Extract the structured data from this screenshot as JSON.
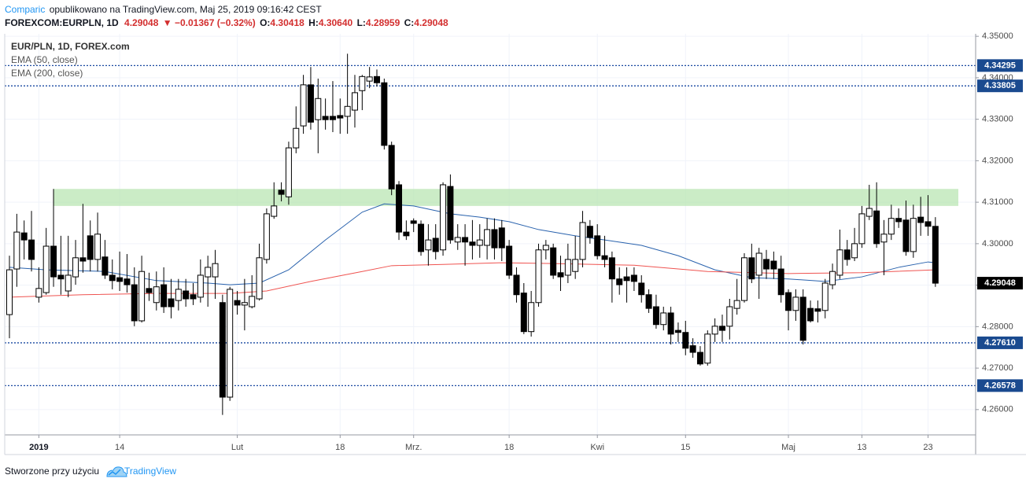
{
  "header": {
    "author": "Comparic",
    "published": "opublikowano na TradingView.com, Maj 25, 2019 09:16:42 CEST",
    "symbol": "FOREXCOM:EURPLN, 1D",
    "last": "4.29048",
    "change": "▼ −0.01367 (−0.32%)",
    "quote": [
      {
        "key": "O:",
        "value": "4.30418"
      },
      {
        "key": "H:",
        "value": "4.30640"
      },
      {
        "key": "L:",
        "value": "4.28959"
      },
      {
        "key": "C:",
        "value": "4.29048"
      }
    ]
  },
  "chart_data": {
    "type": "candlestick",
    "title": "EUR/PLN, 1D, FOREX.com",
    "categories": [
      null,
      null,
      null,
      null,
      "2019",
      null,
      null,
      null,
      null,
      null,
      null,
      null,
      null,
      null,
      null,
      "14",
      null,
      null,
      null,
      null,
      null,
      null,
      null,
      null,
      null,
      null,
      null,
      null,
      null,
      null,
      null,
      "Lut",
      null,
      null,
      null,
      null,
      null,
      null,
      null,
      null,
      null,
      null,
      null,
      null,
      null,
      "18",
      null,
      null,
      null,
      null,
      null,
      null,
      null,
      null,
      null,
      "Mrz.",
      null,
      null,
      null,
      null,
      null,
      null,
      null,
      null,
      null,
      null,
      null,
      null,
      "18",
      null,
      null,
      null,
      null,
      null,
      null,
      null,
      null,
      null,
      null,
      null,
      "Kwi",
      null,
      null,
      null,
      null,
      null,
      null,
      null,
      null,
      null,
      null,
      null,
      "15",
      null,
      null,
      null,
      null,
      null,
      null,
      null,
      null,
      null,
      null,
      null,
      null,
      null,
      "Maj",
      null,
      null,
      null,
      null,
      null,
      null,
      null,
      null,
      null,
      "13",
      null,
      null,
      null,
      null,
      null,
      null,
      null,
      null,
      "23",
      null
    ],
    "open": [
      4.2829,
      4.2939,
      4.3026,
      4.3009,
      4.2871,
      4.2882,
      4.2994,
      4.2924,
      4.2886,
      4.292,
      4.2966,
      4.3019,
      4.2962,
      4.2968,
      4.2924,
      4.2918,
      4.2915,
      4.2901,
      4.2814,
      4.2892,
      4.2858,
      4.2901,
      4.2867,
      4.2863,
      4.2886,
      4.2877,
      4.2871,
      4.292,
      4.292,
      4.2858,
      4.263,
      4.2863,
      4.2852,
      4.2848,
      4.2867,
      4.2962,
      4.3066,
      4.3129,
      4.3113,
      4.3231,
      4.3284,
      4.3383,
      4.3299,
      4.3307,
      4.3307,
      4.3309,
      4.3307,
      4.3322,
      4.3369,
      4.3392,
      4.3403,
      4.3388,
      4.3237,
      4.3142,
      4.3028,
      4.3055,
      4.3047,
      4.2985,
      4.3013,
      4.2985,
      4.3138,
      4.3004,
      4.3015,
      4.3004,
      4.2996,
      4.2996,
      4.3034,
      4.3038,
      4.2994,
      4.2924,
      4.2881,
      4.2788,
      4.2858,
      4.2985,
      4.299,
      4.293,
      4.2924,
      4.2933,
      4.2962,
      4.3042,
      4.3019,
      4.2971,
      4.2966,
      4.2915,
      4.292,
      4.2924,
      4.2905,
      4.2877,
      4.2848,
      4.2805,
      4.2833,
      4.2791,
      4.2786,
      4.2754,
      4.2738,
      4.2712,
      4.2782,
      4.2801,
      4.2801,
      4.2844,
      4.2863,
      4.2966,
      4.2924,
      4.2962,
      4.2958,
      4.2939,
      4.2882,
      4.2839,
      4.2871,
      4.2844,
      4.2843,
      4.2839,
      4.2901,
      4.2924,
      4.2985,
      4.2966,
      4.3,
      4.3066,
      4.3079,
      4.3004,
      4.3023,
      4.3061,
      4.3057,
      4.2981,
      4.3064,
      4.3053,
      4.30418
    ],
    "high": [
      4.2971,
      4.3072,
      4.3056,
      4.3079,
      4.2943,
      4.3038,
      4.3132,
      4.3019,
      4.3019,
      4.3009,
      4.3096,
      4.3056,
      4.3075,
      4.3009,
      4.2962,
      4.2981,
      4.2975,
      4.2943,
      4.2971,
      4.293,
      4.2933,
      4.2943,
      4.2915,
      4.2915,
      4.2915,
      4.2905,
      4.2962,
      4.2971,
      4.2985,
      4.2877,
      4.2896,
      4.2886,
      4.2915,
      4.2924,
      4.3,
      4.3085,
      4.3148,
      4.3148,
      4.3246,
      4.3331,
      4.3407,
      4.3426,
      4.3398,
      4.335,
      4.3392,
      4.335,
      4.3458,
      4.3407,
      4.3407,
      4.3426,
      4.342,
      4.3398,
      4.3246,
      4.3151,
      4.3056,
      4.3061,
      4.3056,
      4.3047,
      4.3047,
      4.3148,
      4.3167,
      4.3047,
      4.3047,
      4.3057,
      4.3047,
      4.3061,
      4.3061,
      4.3057,
      4.3009,
      4.2943,
      4.2905,
      4.2886,
      4.3,
      4.3009,
      4.3,
      4.2971,
      4.3,
      4.3019,
      4.3079,
      4.3057,
      4.3047,
      4.3019,
      4.2981,
      4.2943,
      4.2943,
      4.2943,
      4.2924,
      4.289,
      4.2877,
      4.2848,
      4.2848,
      4.281,
      4.2814,
      4.2772,
      4.2753,
      4.2791,
      4.282,
      4.2829,
      4.2867,
      4.2915,
      4.2977,
      4.3,
      4.299,
      4.2985,
      4.2981,
      4.2971,
      4.289,
      4.289,
      4.289,
      4.2863,
      4.2863,
      4.2915,
      4.2952,
      4.3034,
      4.3009,
      4.3038,
      4.3091,
      4.3142,
      4.3148,
      4.3057,
      4.3094,
      4.3085,
      4.3104,
      4.3094,
      4.3113,
      4.3117,
      4.3064
    ],
    "low": [
      4.2772,
      4.2896,
      4.2962,
      4.2933,
      4.2858,
      4.2877,
      4.2896,
      4.2877,
      4.2871,
      4.2901,
      4.293,
      4.2933,
      4.2933,
      4.2915,
      4.289,
      4.2886,
      4.2882,
      4.2801,
      4.281,
      4.2862,
      4.2839,
      4.2833,
      4.282,
      4.2839,
      4.2848,
      4.2852,
      4.2858,
      4.2848,
      4.2867,
      4.2587,
      4.2621,
      4.2829,
      4.2791,
      4.2844,
      4.2863,
      4.2952,
      4.306,
      4.3102,
      4.3094,
      4.3218,
      4.3265,
      4.3275,
      4.3218,
      4.3275,
      4.3269,
      4.3265,
      4.3265,
      4.328,
      4.3322,
      4.3375,
      4.3379,
      4.3227,
      4.3117,
      4.3009,
      4.3009,
      4.3028,
      4.2971,
      4.2947,
      4.2962,
      4.2971,
      4.3,
      4.2985,
      4.2947,
      4.2962,
      4.2966,
      4.2962,
      4.2962,
      4.2958,
      4.2915,
      4.2858,
      4.2782,
      4.2776,
      4.2848,
      4.2962,
      4.2915,
      4.2886,
      4.2905,
      4.2915,
      4.2943,
      4.3,
      4.2962,
      4.2943,
      4.2858,
      4.2877,
      4.2858,
      4.2886,
      4.2858,
      4.2833,
      4.2795,
      4.2791,
      4.2757,
      4.2763,
      4.2731,
      4.2725,
      4.2706,
      4.2706,
      4.2763,
      4.2763,
      4.2769,
      4.2829,
      4.2858,
      4.2905,
      4.2867,
      4.2915,
      4.2915,
      4.2858,
      4.2791,
      4.2814,
      4.2757,
      4.281,
      4.281,
      4.282,
      4.289,
      4.2915,
      4.2947,
      4.2958,
      4.299,
      4.3057,
      4.299,
      4.2924,
      4.3009,
      4.3038,
      4.2971,
      4.2966,
      4.3019,
      4.3019,
      4.28959
    ],
    "close": [
      4.2937,
      4.3028,
      4.3009,
      4.2962,
      4.2892,
      4.2994,
      4.292,
      4.2915,
      4.2924,
      4.2966,
      4.2958,
      4.2962,
      4.3023,
      4.2924,
      4.2911,
      4.2909,
      4.2901,
      4.2814,
      4.2933,
      4.2882,
      4.2896,
      4.2848,
      4.2848,
      4.289,
      4.2867,
      4.2867,
      4.2924,
      4.2943,
      4.2952,
      4.263,
      4.289,
      4.2852,
      4.2858,
      4.2873,
      4.2966,
      4.3072,
      4.3091,
      4.3119,
      4.3231,
      4.3278,
      4.3383,
      4.3293,
      4.335,
      4.3299,
      4.3299,
      4.3303,
      4.3331,
      4.3364,
      4.3403,
      4.3402,
      4.3388,
      4.3237,
      4.3132,
      4.3028,
      4.3019,
      4.3049,
      4.2981,
      4.3009,
      4.2981,
      4.3142,
      4.3009,
      4.3015,
      4.3004,
      4.2996,
      4.3009,
      4.3034,
      4.299,
      4.299,
      4.2924,
      4.2877,
      4.2788,
      4.2858,
      4.2985,
      4.2996,
      4.2924,
      4.292,
      4.2962,
      4.2962,
      4.3051,
      4.3015,
      4.2971,
      4.2962,
      4.2915,
      4.2901,
      4.2911,
      4.2909,
      4.2877,
      4.2844,
      4.2805,
      4.2833,
      4.2782,
      4.2786,
      4.2748,
      4.2738,
      4.271,
      4.2782,
      4.2801,
      4.2791,
      4.2848,
      4.2863,
      4.2966,
      4.2915,
      4.2977,
      4.2939,
      4.2939,
      4.2877,
      4.2839,
      4.2871,
      4.2767,
      4.2814,
      4.2837,
      4.2905,
      4.2933,
      4.2985,
      4.2962,
      4.3,
      4.3072,
      4.3085,
      4.3,
      4.3023,
      4.3061,
      4.3053,
      4.2981,
      4.3061,
      4.3051,
      4.3042,
      4.29048
    ],
    "series": [
      {
        "name": "EMA (50, close)",
        "color": "#2962ad",
        "x": [
          0,
          5,
          13,
          20,
          27,
          30,
          34,
          38,
          43,
          48,
          51,
          55,
          60,
          64,
          68,
          72,
          77,
          81,
          86,
          91,
          96,
          101,
          106,
          111,
          116,
          121,
          125,
          126
        ],
        "values": [
          4.2943,
          4.2937,
          4.2933,
          4.2911,
          4.2905,
          4.2901,
          4.2905,
          4.2937,
          4.3009,
          4.3076,
          4.3096,
          4.3091,
          4.3072,
          4.3064,
          4.3053,
          4.3034,
          4.3019,
          4.3009,
          4.2996,
          4.2971,
          4.2937,
          4.2918,
          4.2915,
          4.2909,
          4.292,
          4.2943,
          4.2956,
          4.2954
        ]
      },
      {
        "name": "EMA (200, close)",
        "color": "#ef5350",
        "x": [
          0,
          10,
          20,
          30,
          35,
          41,
          48,
          52,
          59,
          67,
          74,
          85,
          95,
          106,
          116,
          126
        ],
        "values": [
          4.2871,
          4.2877,
          4.288,
          4.288,
          4.2886,
          4.2909,
          4.2933,
          4.2947,
          4.295,
          4.2954,
          4.2952,
          4.2948,
          4.2933,
          4.2928,
          4.293,
          4.2937
        ]
      }
    ],
    "zone": [
      4.3091,
      4.3132
    ],
    "levels": [
      4.34295,
      4.33805,
      {
        "value": 4.2761,
        "label": "4.27610"
      },
      4.26578
    ],
    "ylim": [
      4.2539,
      4.3506
    ],
    "yticks": [
      {
        "value": 4.26,
        "label": "4.26000"
      },
      {
        "value": 4.27,
        "label": "4.27000"
      },
      {
        "value": 4.28,
        "label": "4.28000"
      },
      {
        "value": 4.29,
        "label": "4.29000"
      },
      {
        "value": 4.3,
        "label": "4.30000"
      },
      {
        "value": 4.31,
        "label": "4.31000"
      },
      {
        "value": 4.32,
        "label": "4.32000"
      },
      {
        "value": 4.33,
        "label": "4.33000"
      },
      {
        "value": 4.34,
        "label": "4.34000"
      },
      {
        "value": 4.35,
        "label": "4.35000"
      }
    ],
    "grid": true
  },
  "footer": {
    "text": "Stworzone przy użyciu",
    "brand": "TradingView"
  }
}
